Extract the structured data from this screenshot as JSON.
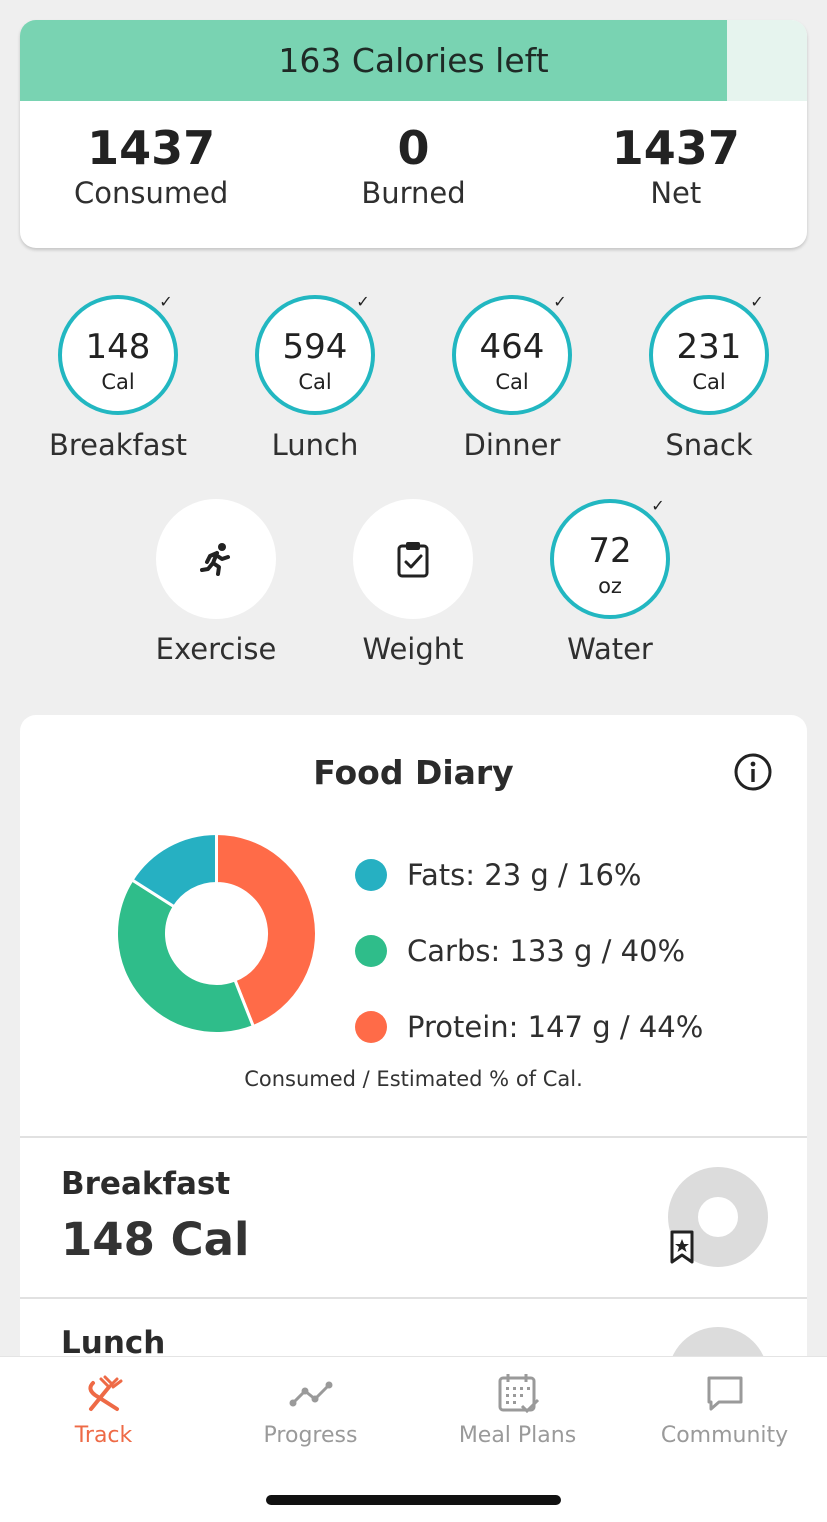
{
  "calories": {
    "left_text": "163 Calories left",
    "progress_fraction": 0.898,
    "consumed_value": "1437",
    "consumed_label": "Consumed",
    "burned_value": "0",
    "burned_label": "Burned",
    "net_value": "1437",
    "net_label": "Net"
  },
  "meals": [
    {
      "value": "148",
      "unit": "Cal",
      "label": "Breakfast"
    },
    {
      "value": "594",
      "unit": "Cal",
      "label": "Lunch"
    },
    {
      "value": "464",
      "unit": "Cal",
      "label": "Dinner"
    },
    {
      "value": "231",
      "unit": "Cal",
      "label": "Snack"
    }
  ],
  "extras": {
    "exercise_label": "Exercise",
    "weight_label": "Weight",
    "water_value": "72",
    "water_unit": "oz",
    "water_label": "Water"
  },
  "diary": {
    "title": "Food Diary",
    "macros": [
      {
        "label": "Fats: 23 g / 16%",
        "percent": 16,
        "color": "#26b0c2"
      },
      {
        "label": "Carbs: 133 g / 40%",
        "percent": 40,
        "color": "#2fbd8a"
      },
      {
        "label": "Protein: 147 g / 44%",
        "percent": 44,
        "color": "#ff6b48"
      }
    ],
    "note": "Consumed / Estimated % of Cal.",
    "entries": [
      {
        "name": "Breakfast",
        "calories": "148 Cal"
      },
      {
        "name": "Lunch",
        "calories": ""
      }
    ]
  },
  "nav": {
    "track": "Track",
    "progress": "Progress",
    "meal_plans": "Meal Plans",
    "community": "Community"
  },
  "colors": {
    "accent": "#ee6a46",
    "ring": "#22b7c1",
    "calorie_bar": "#79d3b2"
  }
}
